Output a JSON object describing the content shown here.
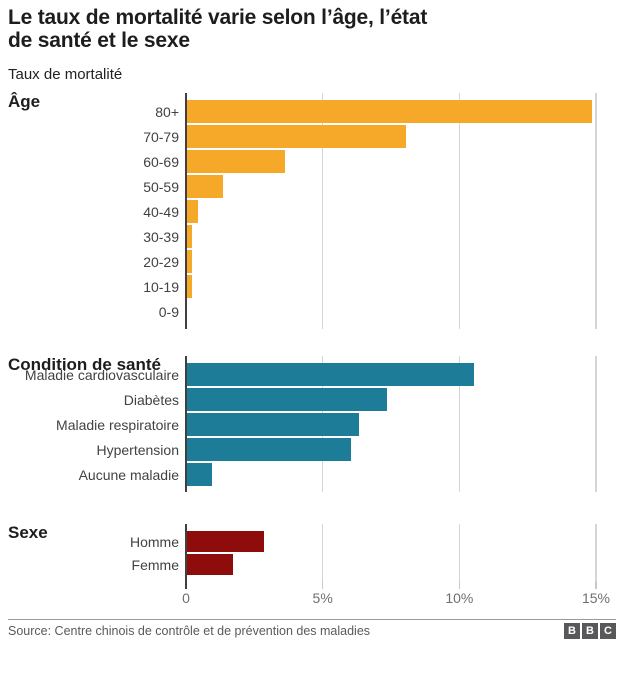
{
  "header": {
    "title_lines": [
      "Le taux de mortalité varie selon l’âge, l’état",
      "de santé et le sexe"
    ],
    "subtitle": "Taux de mortalité"
  },
  "chart_data": [
    {
      "type": "bar",
      "section": "Âge",
      "unit": "%",
      "categories": [
        "80+",
        "70-79",
        "60-69",
        "50-59",
        "40-49",
        "30-39",
        "20-29",
        "10-19",
        "0-9"
      ],
      "values": [
        14.8,
        8.0,
        3.6,
        1.3,
        0.4,
        0.2,
        0.2,
        0.2,
        0
      ],
      "bar_color": "#F6A829",
      "xlim": [
        0,
        15.4
      ],
      "gridline_values": [
        5,
        10,
        15
      ],
      "legend": "none",
      "grid": "vertical"
    },
    {
      "type": "bar",
      "section": "Condition de santé",
      "unit": "%",
      "categories": [
        "Maladie cardiovasculaire",
        "Diabètes",
        "Maladie respiratoire",
        "Hypertension",
        "Aucune maladie"
      ],
      "values": [
        10.5,
        7.3,
        6.3,
        6.0,
        0.9
      ],
      "bar_color": "#1D7D98",
      "xlim": [
        0,
        15.4
      ],
      "gridline_values": [
        5,
        10,
        15
      ],
      "legend": "none",
      "grid": "vertical"
    },
    {
      "type": "bar",
      "section": "Sexe",
      "unit": "%",
      "categories": [
        "Homme",
        "Femme"
      ],
      "values": [
        2.8,
        1.7
      ],
      "bar_color": "#8E0C0C",
      "xlim": [
        0,
        15.4
      ],
      "gridline_values": [
        5,
        10,
        15
      ],
      "legend": "none",
      "grid": "vertical"
    }
  ],
  "x_axis": {
    "ticks": [
      {
        "value": 0,
        "label": "0"
      },
      {
        "value": 5,
        "label": "5%"
      },
      {
        "value": 10,
        "label": "10%"
      },
      {
        "value": 15,
        "label": "15%"
      }
    ]
  },
  "colors": {
    "axis_line": "#404040",
    "gridline": "#d5d5d5",
    "tick_stub": "#c9c9c9"
  },
  "footer": {
    "source": "Source: Centre chinois de contrôle et de prévention des maladies",
    "logo_letters": [
      "B",
      "B",
      "C"
    ]
  }
}
